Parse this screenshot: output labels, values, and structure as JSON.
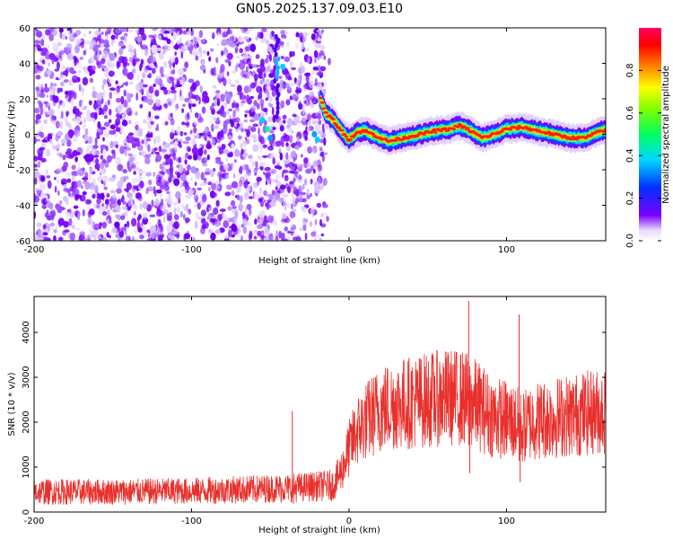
{
  "title": "GN05.2025.137.09.03.E10",
  "chart_data": [
    {
      "type": "heatmap",
      "xlabel": "Height of straight line (km)",
      "ylabel": "Frequency (Hz)",
      "xlim": [
        -200,
        163
      ],
      "ylim": [
        -60,
        60
      ],
      "xticks": [
        -200,
        -100,
        0,
        100
      ],
      "yticks": [
        -60,
        -40,
        -20,
        0,
        20,
        40,
        60
      ],
      "grid": false,
      "description_points": {
        "noise_region_x": [
          -200,
          -15
        ],
        "signal_track": [
          {
            "x": -18,
            "y": 20
          },
          {
            "x": -15,
            "y": 12
          },
          {
            "x": -10,
            "y": 8
          },
          {
            "x": -5,
            "y": 2
          },
          {
            "x": 0,
            "y": -3
          },
          {
            "x": 5,
            "y": 1
          },
          {
            "x": 10,
            "y": 2
          },
          {
            "x": 20,
            "y": -2
          },
          {
            "x": 25,
            "y": -4
          },
          {
            "x": 35,
            "y": -2
          },
          {
            "x": 45,
            "y": 0
          },
          {
            "x": 55,
            "y": 2
          },
          {
            "x": 65,
            "y": 3
          },
          {
            "x": 70,
            "y": 5
          },
          {
            "x": 75,
            "y": 3
          },
          {
            "x": 85,
            "y": -2
          },
          {
            "x": 95,
            "y": 1
          },
          {
            "x": 100,
            "y": 3
          },
          {
            "x": 110,
            "y": 4
          },
          {
            "x": 120,
            "y": 2
          },
          {
            "x": 130,
            "y": 0
          },
          {
            "x": 140,
            "y": -2
          },
          {
            "x": 150,
            "y": -2
          },
          {
            "x": 160,
            "y": 2
          },
          {
            "x": 163,
            "y": 2
          }
        ],
        "streak_x": -46
      },
      "colorbar": {
        "label": "Normalized spectral amplitude",
        "range": [
          0,
          1
        ],
        "ticks": [
          0.0,
          0.2,
          0.4,
          0.6,
          0.8
        ]
      }
    },
    {
      "type": "line",
      "xlabel": "Height of straight line (km)",
      "ylabel": "SNR (10 * v/v)",
      "xlim": [
        -200,
        163
      ],
      "ylim": [
        0,
        4800
      ],
      "xticks": [
        -200,
        -100,
        0,
        100
      ],
      "yticks": [
        0,
        1000,
        2000,
        3000,
        4000
      ],
      "color": "#e8302c",
      "grid": false,
      "series": [
        {
          "x": [
            -200,
            -150,
            -100,
            -50,
            -30,
            -10,
            -5,
            0,
            5,
            10,
            15,
            20,
            30,
            40,
            50,
            60,
            70,
            75,
            80,
            85,
            90,
            95,
            100,
            105,
            110,
            115,
            120,
            130,
            140,
            150,
            163
          ],
          "y": [
            450,
            450,
            470,
            520,
            550,
            600,
            900,
            1400,
            1800,
            2000,
            2150,
            2300,
            2400,
            2450,
            2500,
            2550,
            2550,
            2500,
            2400,
            2300,
            2150,
            2100,
            2050,
            2000,
            1850,
            2000,
            2050,
            2100,
            2150,
            2200,
            2250
          ],
          "spikes": [
            {
              "x": -36,
              "y": 2250
            },
            {
              "x": 76,
              "y": 4700
            },
            {
              "x": 108,
              "y": 4400
            }
          ]
        }
      ]
    }
  ]
}
